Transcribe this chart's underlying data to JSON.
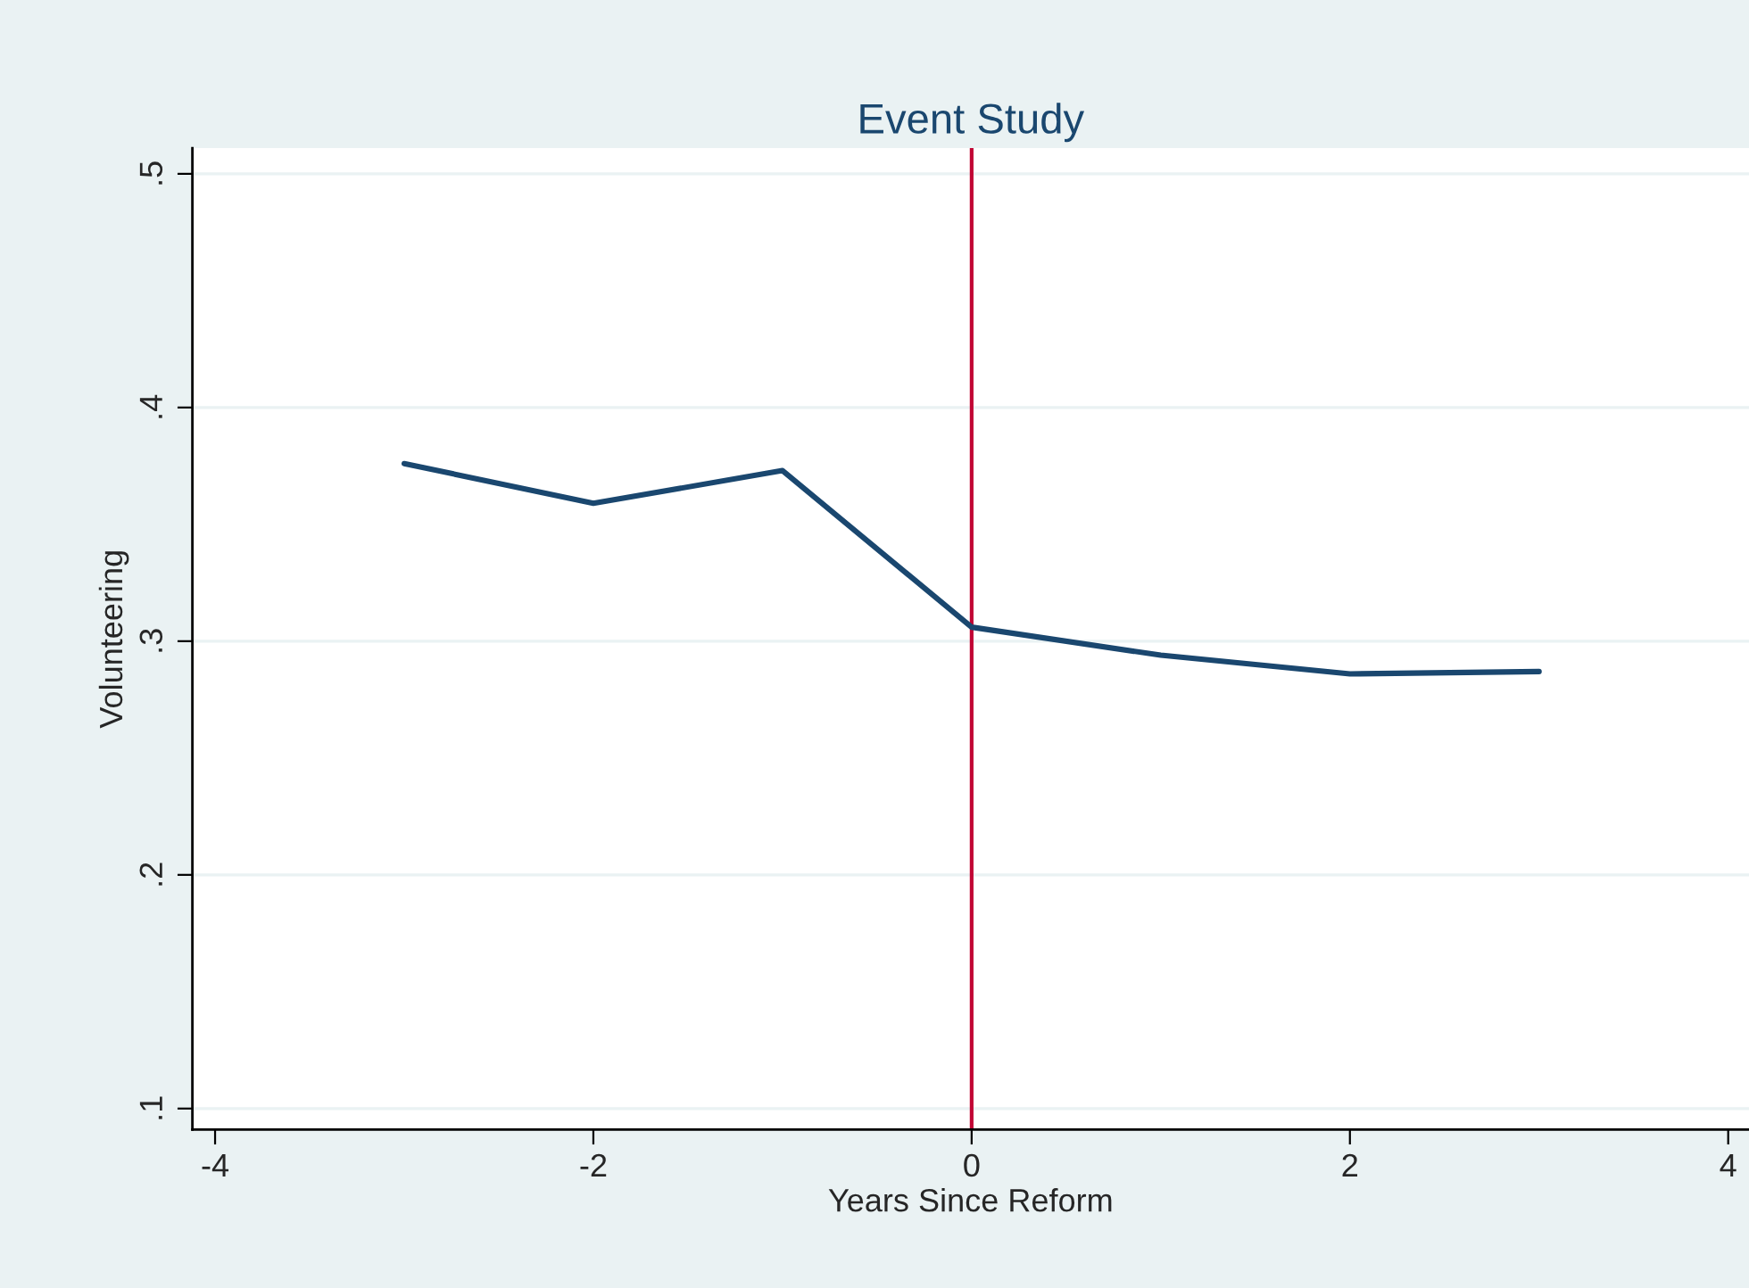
{
  "chart_data": {
    "type": "line",
    "title": "Event Study",
    "xlabel": "Years Since Reform",
    "ylabel": "Volunteering",
    "x": [
      -3,
      -2,
      -1,
      0,
      1,
      2,
      3
    ],
    "series": [
      {
        "color": "#1a476f",
        "values": [
          0.376,
          0.359,
          0.373,
          0.306,
          0.294,
          0.286,
          0.287
        ]
      }
    ],
    "xlim": [
      -4.12,
      4.11
    ],
    "xticks": [
      -4,
      -2,
      0,
      2,
      4
    ],
    "ylim": [
      0.091,
      0.511
    ],
    "yticks": [
      {
        "value": 0.1,
        "label": ".1"
      },
      {
        "value": 0.2,
        "label": ".2"
      },
      {
        "value": 0.3,
        "label": ".3"
      },
      {
        "value": 0.4,
        "label": ".4"
      },
      {
        "value": 0.5,
        "label": ".5"
      }
    ],
    "ref_lines": [
      {
        "axis": "x",
        "value": 0,
        "color": "#c10534"
      }
    ],
    "grid": "y",
    "marker": "none",
    "line_style": "solid"
  }
}
